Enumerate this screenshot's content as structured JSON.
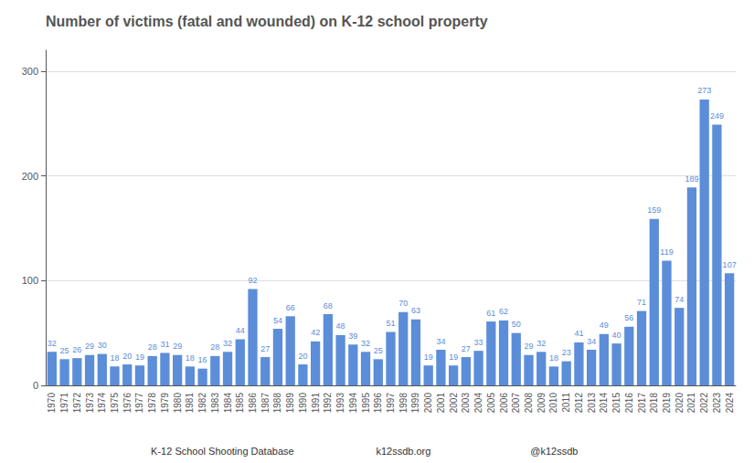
{
  "chart_data": {
    "type": "bar",
    "title": "Number of victims (fatal and wounded) on K-12 school property",
    "categories": [
      "1970",
      "1971",
      "1972",
      "1973",
      "1974",
      "1975",
      "1976",
      "1977",
      "1978",
      "1979",
      "1980",
      "1981",
      "1982",
      "1983",
      "1984",
      "1985",
      "1986",
      "1987",
      "1988",
      "1989",
      "1990",
      "1991",
      "1992",
      "1993",
      "1994",
      "1995",
      "1996",
      "1997",
      "1998",
      "1999",
      "2000",
      "2001",
      "2002",
      "2003",
      "2004",
      "2005",
      "2006",
      "2007",
      "2008",
      "2009",
      "2010",
      "2011",
      "2012",
      "2013",
      "2014",
      "2015",
      "2016",
      "2017",
      "2018",
      "2019",
      "2020",
      "2021",
      "2022",
      "2023",
      "2024"
    ],
    "values": [
      32,
      25,
      26,
      29,
      30,
      18,
      20,
      19,
      28,
      31,
      29,
      18,
      16,
      28,
      32,
      44,
      92,
      27,
      54,
      66,
      20,
      42,
      68,
      48,
      39,
      32,
      25,
      51,
      70,
      63,
      19,
      34,
      19,
      27,
      33,
      61,
      62,
      50,
      29,
      32,
      18,
      23,
      41,
      34,
      49,
      40,
      56,
      71,
      159,
      119,
      74,
      189,
      273,
      249,
      107
    ],
    "color": "#5b8dd9",
    "ylim": [
      0,
      320
    ],
    "yticks": [
      0,
      100,
      200,
      300
    ],
    "grid": true,
    "data_labels": true,
    "annotations": [
      "K-12 School Shooting Database",
      "k12ssdb.org",
      "@k12ssdb"
    ]
  }
}
